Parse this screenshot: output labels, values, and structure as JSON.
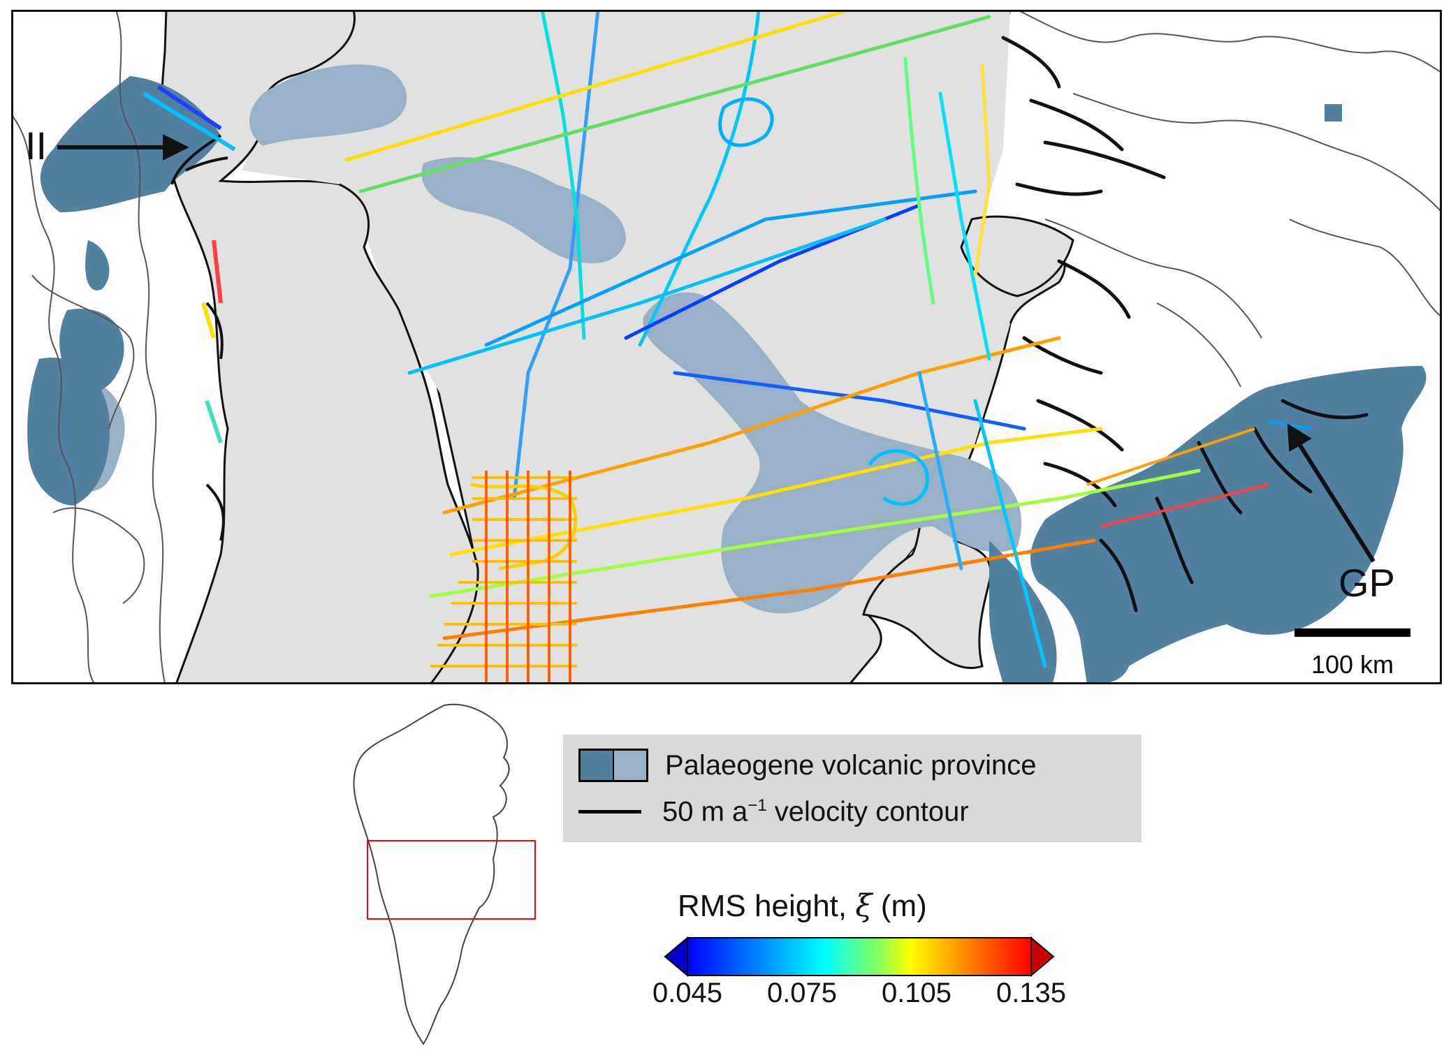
{
  "main_map": {
    "labels": {
      "ii": "II",
      "gp": "GP"
    },
    "scale_bar": {
      "label": "100 km",
      "length_km": 100
    },
    "colors": {
      "ice_sheet": "#e1e1e1",
      "volcanic_dark": "#51819f",
      "volcanic_light": "#98b1c7",
      "coastline": "#444444",
      "velocity_contour": "#000000"
    }
  },
  "inset_map": {
    "highlight_color": "#ff0000",
    "outline_color": "#444444"
  },
  "legend": {
    "volcanic_label": "Palaeogene volcanic province",
    "contour_label_main": "50 m a",
    "contour_label_sup": "−1",
    "contour_label_rest": " velocity contour",
    "swatch_dark": "#51819f",
    "swatch_light": "#98b1c7",
    "background": "#d9d9d9"
  },
  "colorbar": {
    "title_main": "RMS height, ",
    "title_symbol": "ξ",
    "title_unit": " (m)",
    "ticks": [
      "0.045",
      "0.075",
      "0.105",
      "0.135"
    ],
    "min": 0.045,
    "max": 0.135,
    "colormap": "jet",
    "extend": "both"
  }
}
